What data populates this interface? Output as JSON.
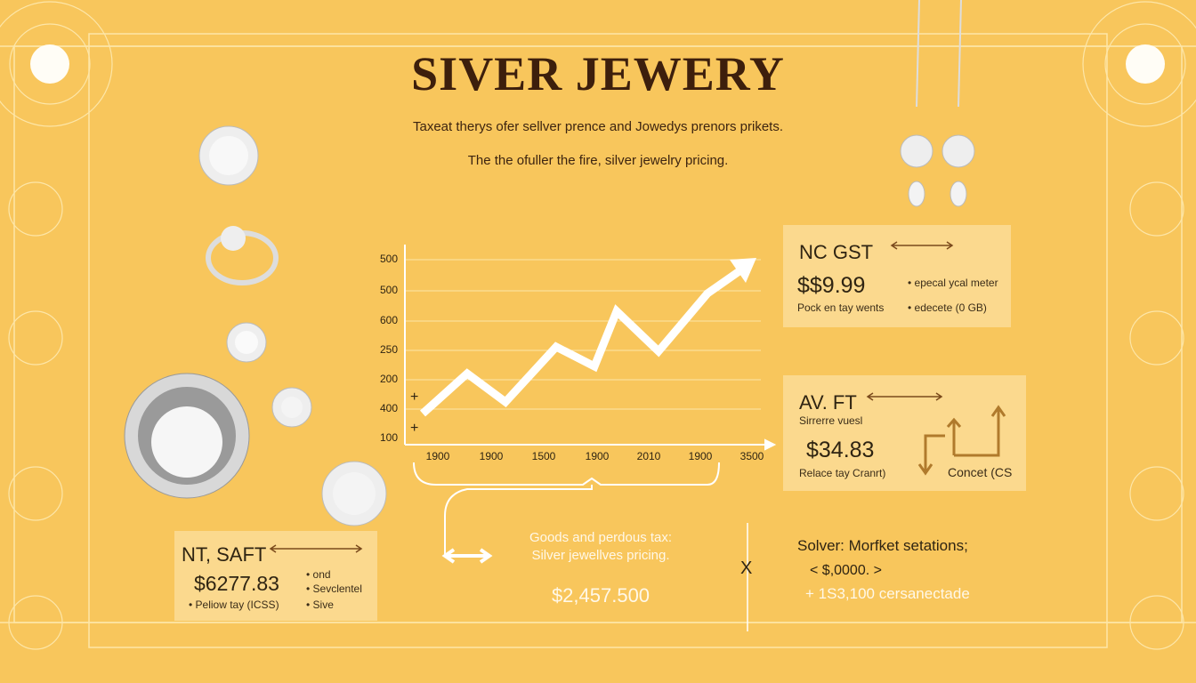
{
  "header": {
    "title": "SIVER JEWERY",
    "subtitle": "Taxeat therys ofer sellver prence and Jowedys prenors prikets.",
    "tagline": "The the ofuller the fire, silver jewelry pricing."
  },
  "chart": {
    "y_labels": [
      "500",
      "500",
      "600",
      "250",
      "200",
      "400",
      "100"
    ],
    "x_labels": [
      "1900",
      "1900",
      "1500",
      "1900",
      "2010",
      "1900",
      "3500"
    ],
    "markers": [
      "+",
      "+"
    ]
  },
  "boxes": [
    {
      "heading": "NC GST",
      "price": "$$9.99",
      "note": "Pock en tay wents",
      "bullets": [
        "• epecal ycal meter",
        "• edecete (0 GB)"
      ]
    },
    {
      "heading": "AV. FT",
      "subheading": "Sirrerre vuesl",
      "price": "$34.83",
      "note": "Relace tay Cranrt)",
      "side_note": "Concet (CS"
    },
    {
      "heading": "NT, SAFT",
      "price": "$6277.83",
      "note": "• Peliow tay (ICSS)",
      "bullets": [
        "• ond",
        "• Sevclentel",
        "• Sive"
      ]
    }
  ],
  "summary": {
    "label": "Goods and perdous tax:",
    "caption": "Silver jewellves pricing.",
    "total": "$2,457.500",
    "mark": "X"
  },
  "market": {
    "heading": "Solver: Morfket setations;",
    "lines": [
      "< $,0000. >",
      "+ 1S3,100 cersanectade"
    ]
  }
}
